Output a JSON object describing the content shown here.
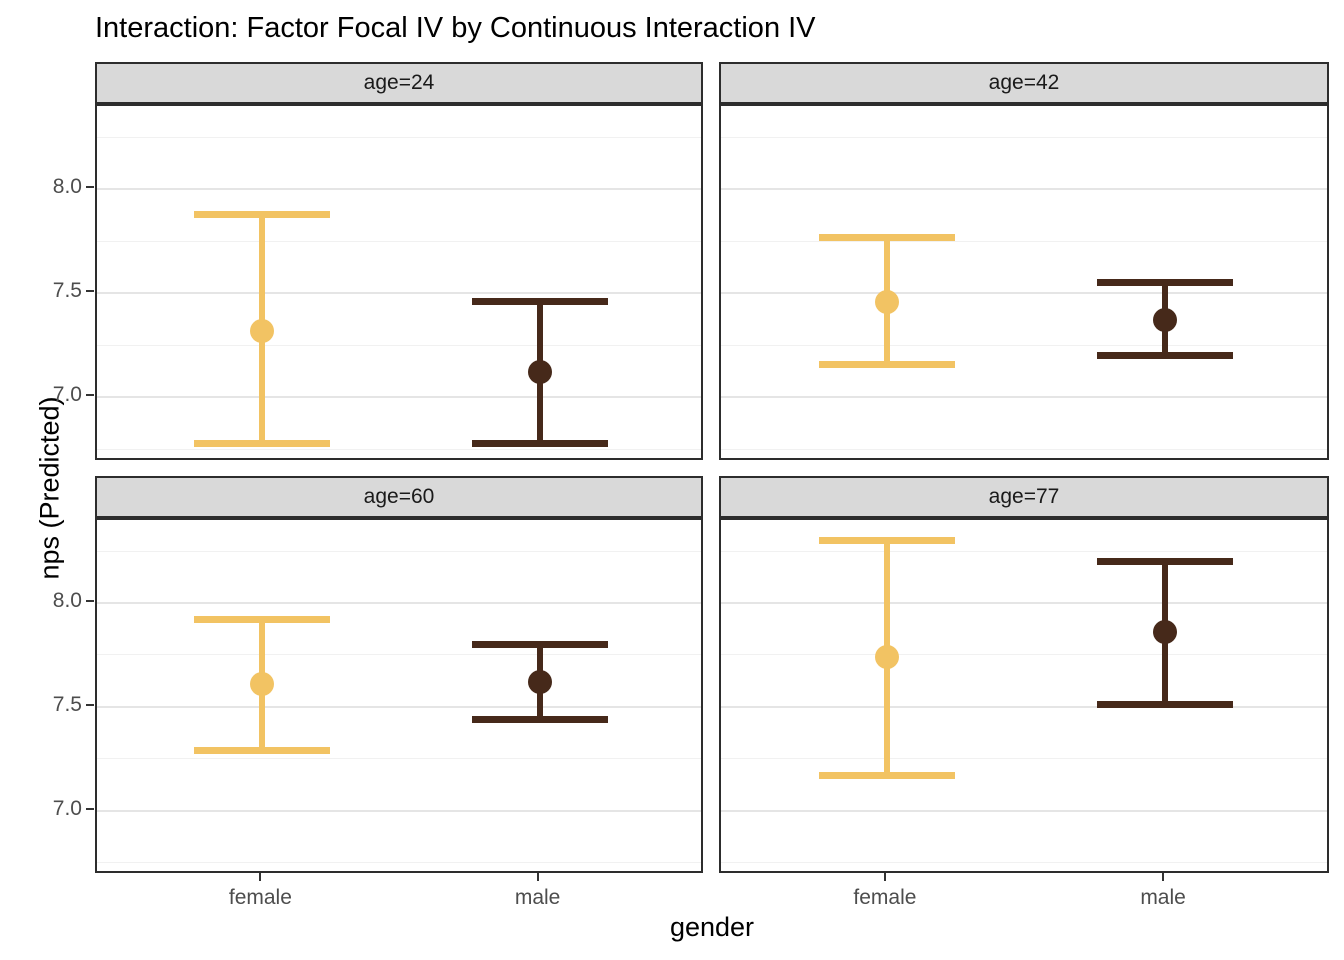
{
  "chart_data": {
    "type": "scatter",
    "variant": "point-estimate with error bars (pointrange), faceted 2x2, no legend",
    "title": "Interaction: Factor Focal IV by Continuous Interaction IV",
    "xlabel": "gender",
    "ylabel": "nps (Predicted)",
    "categories": [
      "female",
      "male"
    ],
    "ylim": [
      6.69,
      8.4
    ],
    "yticks": [
      {
        "v": 8.0,
        "label": "8.0"
      },
      {
        "v": 7.5,
        "label": "7.5"
      },
      {
        "v": 7.0,
        "label": "7.0"
      }
    ],
    "minor_gridlines": [
      6.75,
      7.25,
      7.75,
      8.25
    ],
    "grid": "horizontal-only",
    "legend": "none",
    "colors": {
      "female": "#F2C363",
      "male": "#46291A"
    },
    "style": {
      "strip_bg": "#D9D9D9",
      "panel_border": "#2D2D2D",
      "grid_major": "#E5E5E5",
      "grid_minor": "#F1F1F1",
      "tick_color": "#333333",
      "tick_label_color": "#4D4D4D",
      "text_color": "#000000"
    },
    "facets": [
      {
        "label": "age=24",
        "points": [
          {
            "group": "female",
            "y": 7.32,
            "ymin": 6.78,
            "ymax": 7.88
          },
          {
            "group": "male",
            "y": 7.12,
            "ymin": 6.78,
            "ymax": 7.46
          }
        ]
      },
      {
        "label": "age=42",
        "points": [
          {
            "group": "female",
            "y": 7.46,
            "ymin": 7.16,
            "ymax": 7.77
          },
          {
            "group": "male",
            "y": 7.37,
            "ymin": 7.2,
            "ymax": 7.55
          }
        ]
      },
      {
        "label": "age=60",
        "points": [
          {
            "group": "female",
            "y": 7.61,
            "ymin": 7.29,
            "ymax": 7.92
          },
          {
            "group": "male",
            "y": 7.62,
            "ymin": 7.44,
            "ymax": 7.8
          }
        ]
      },
      {
        "label": "age=77",
        "points": [
          {
            "group": "female",
            "y": 7.74,
            "ymin": 7.17,
            "ymax": 8.3
          },
          {
            "group": "male",
            "y": 7.86,
            "ymin": 7.51,
            "ymax": 8.2
          }
        ]
      }
    ]
  }
}
